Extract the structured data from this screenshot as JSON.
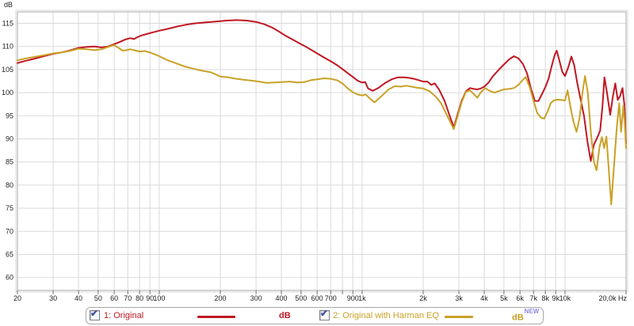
{
  "chart_data": {
    "type": "line",
    "title": "",
    "ylabel": "dB",
    "x_scale": "log",
    "x_range": [
      20,
      20000
    ],
    "y_range": [
      57.5,
      117.5
    ],
    "grid": true,
    "legend_position": "bottom",
    "y_ticks": [
      115,
      110,
      105,
      100,
      95,
      90,
      85,
      80,
      75,
      70,
      65,
      60
    ],
    "x_ticks": [
      {
        "f": 20,
        "label": "20"
      },
      {
        "f": 30,
        "label": "30"
      },
      {
        "f": 40,
        "label": "40"
      },
      {
        "f": 50,
        "label": "50"
      },
      {
        "f": 60,
        "label": "60"
      },
      {
        "f": 70,
        "label": "70"
      },
      {
        "f": 80,
        "label": "80"
      },
      {
        "f": 90,
        "label": "90"
      },
      {
        "f": 100,
        "label": "100"
      },
      {
        "f": 200,
        "label": "200"
      },
      {
        "f": 300,
        "label": "300"
      },
      {
        "f": 400,
        "label": "400"
      },
      {
        "f": 500,
        "label": "500"
      },
      {
        "f": 600,
        "label": "600"
      },
      {
        "f": 700,
        "label": "700"
      },
      {
        "f": 800,
        "label": ""
      },
      {
        "f": 900,
        "label": "900"
      },
      {
        "f": 1000,
        "label": "1k"
      },
      {
        "f": 2000,
        "label": "2k"
      },
      {
        "f": 3000,
        "label": "3k"
      },
      {
        "f": 4000,
        "label": "4k"
      },
      {
        "f": 5000,
        "label": "5k"
      },
      {
        "f": 6000,
        "label": "6k"
      },
      {
        "f": 7000,
        "label": "7k"
      },
      {
        "f": 8000,
        "label": "8k"
      },
      {
        "f": 9000,
        "label": "9k"
      },
      {
        "f": 10000,
        "label": "10k"
      },
      {
        "f": 20000,
        "label": "20,0k Hz"
      }
    ],
    "series": [
      {
        "name": "1: Original",
        "unit": "dB",
        "badge": "",
        "color": "#bf1722",
        "points": [
          [
            20,
            106.4
          ],
          [
            22,
            106.9
          ],
          [
            24,
            107.3
          ],
          [
            27,
            107.9
          ],
          [
            30,
            108.4
          ],
          [
            33,
            108.7
          ],
          [
            36,
            109.1
          ],
          [
            40,
            109.7
          ],
          [
            44,
            109.9
          ],
          [
            48,
            110.0
          ],
          [
            52,
            109.8
          ],
          [
            56,
            110.0
          ],
          [
            60,
            110.5
          ],
          [
            64,
            111.0
          ],
          [
            68,
            111.5
          ],
          [
            72,
            111.8
          ],
          [
            75,
            111.6
          ],
          [
            78,
            112.0
          ],
          [
            82,
            112.4
          ],
          [
            87,
            112.7
          ],
          [
            92,
            113.0
          ],
          [
            100,
            113.4
          ],
          [
            110,
            113.8
          ],
          [
            122,
            114.3
          ],
          [
            135,
            114.7
          ],
          [
            150,
            115.0
          ],
          [
            170,
            115.2
          ],
          [
            190,
            115.4
          ],
          [
            215,
            115.6
          ],
          [
            240,
            115.7
          ],
          [
            270,
            115.6
          ],
          [
            300,
            115.3
          ],
          [
            330,
            114.8
          ],
          [
            360,
            114.1
          ],
          [
            390,
            113.2
          ],
          [
            420,
            112.3
          ],
          [
            450,
            111.6
          ],
          [
            490,
            110.7
          ],
          [
            530,
            109.9
          ],
          [
            570,
            109.1
          ],
          [
            610,
            108.3
          ],
          [
            650,
            107.6
          ],
          [
            700,
            106.8
          ],
          [
            750,
            106.0
          ],
          [
            800,
            105.1
          ],
          [
            850,
            104.2
          ],
          [
            900,
            103.4
          ],
          [
            950,
            102.6
          ],
          [
            1000,
            102.2
          ],
          [
            1035,
            102.3
          ],
          [
            1070,
            100.9
          ],
          [
            1130,
            100.4
          ],
          [
            1200,
            101.0
          ],
          [
            1300,
            102.1
          ],
          [
            1400,
            102.9
          ],
          [
            1500,
            103.3
          ],
          [
            1600,
            103.3
          ],
          [
            1700,
            103.2
          ],
          [
            1800,
            103.0
          ],
          [
            1900,
            102.7
          ],
          [
            2000,
            102.4
          ],
          [
            2100,
            102.4
          ],
          [
            2190,
            101.7
          ],
          [
            2280,
            102.0
          ],
          [
            2400,
            100.6
          ],
          [
            2550,
            98.2
          ],
          [
            2700,
            95.0
          ],
          [
            2830,
            92.5
          ],
          [
            2950,
            95.2
          ],
          [
            3100,
            98.3
          ],
          [
            3250,
            100.3
          ],
          [
            3400,
            101.0
          ],
          [
            3550,
            100.8
          ],
          [
            3700,
            100.7
          ],
          [
            3850,
            100.9
          ],
          [
            4000,
            101.3
          ],
          [
            4200,
            102.2
          ],
          [
            4400,
            103.5
          ],
          [
            4700,
            104.9
          ],
          [
            5000,
            106.1
          ],
          [
            5300,
            107.2
          ],
          [
            5600,
            107.9
          ],
          [
            5900,
            107.4
          ],
          [
            6200,
            106.2
          ],
          [
            6500,
            104.2
          ],
          [
            6800,
            100.8
          ],
          [
            7100,
            98.2
          ],
          [
            7400,
            98.2
          ],
          [
            7700,
            99.7
          ],
          [
            8000,
            101.2
          ],
          [
            8300,
            103.0
          ],
          [
            8600,
            105.8
          ],
          [
            8900,
            108.2
          ],
          [
            9100,
            109.1
          ],
          [
            9350,
            107.2
          ],
          [
            9700,
            104.5
          ],
          [
            10000,
            103.6
          ],
          [
            10400,
            105.6
          ],
          [
            10750,
            107.8
          ],
          [
            11100,
            106.0
          ],
          [
            11500,
            102.0
          ],
          [
            11900,
            98.8
          ],
          [
            12400,
            95.0
          ],
          [
            12900,
            89.5
          ],
          [
            13400,
            85.2
          ],
          [
            13900,
            88.8
          ],
          [
            14400,
            90.2
          ],
          [
            14900,
            91.8
          ],
          [
            15300,
            97.0
          ],
          [
            15650,
            103.3
          ],
          [
            16100,
            100.0
          ],
          [
            16700,
            95.2
          ],
          [
            17200,
            99.0
          ],
          [
            17700,
            102.0
          ],
          [
            18200,
            98.4
          ],
          [
            18700,
            99.3
          ],
          [
            19200,
            101.0
          ],
          [
            19600,
            97.5
          ],
          [
            20000,
            89.0
          ]
        ]
      },
      {
        "name": "2: Original with Harman EQ",
        "unit": "dB",
        "badge": "NEW",
        "badge_color": "#8c8cdf",
        "color": "#c9a126",
        "points": [
          [
            20,
            107.0
          ],
          [
            22,
            107.4
          ],
          [
            24,
            107.7
          ],
          [
            27,
            108.1
          ],
          [
            30,
            108.5
          ],
          [
            33,
            108.7
          ],
          [
            36,
            109.0
          ],
          [
            40,
            109.5
          ],
          [
            44,
            109.4
          ],
          [
            48,
            109.2
          ],
          [
            52,
            109.4
          ],
          [
            56,
            109.9
          ],
          [
            60,
            110.3
          ],
          [
            63,
            109.7
          ],
          [
            66,
            109.1
          ],
          [
            69,
            109.2
          ],
          [
            72,
            109.4
          ],
          [
            75,
            109.2
          ],
          [
            80,
            108.9
          ],
          [
            85,
            109.0
          ],
          [
            90,
            108.7
          ],
          [
            95,
            108.3
          ],
          [
            100,
            107.9
          ],
          [
            110,
            107.0
          ],
          [
            120,
            106.4
          ],
          [
            135,
            105.6
          ],
          [
            150,
            105.1
          ],
          [
            165,
            104.7
          ],
          [
            180,
            104.4
          ],
          [
            200,
            103.5
          ],
          [
            220,
            103.3
          ],
          [
            240,
            103.0
          ],
          [
            260,
            102.8
          ],
          [
            285,
            102.6
          ],
          [
            310,
            102.4
          ],
          [
            340,
            102.1
          ],
          [
            370,
            102.2
          ],
          [
            400,
            102.3
          ],
          [
            440,
            102.4
          ],
          [
            480,
            102.2
          ],
          [
            520,
            102.3
          ],
          [
            560,
            102.7
          ],
          [
            600,
            102.9
          ],
          [
            650,
            103.1
          ],
          [
            700,
            103.0
          ],
          [
            750,
            102.7
          ],
          [
            800,
            102.0
          ],
          [
            850,
            100.9
          ],
          [
            900,
            100.1
          ],
          [
            950,
            99.6
          ],
          [
            1000,
            99.4
          ],
          [
            1040,
            99.6
          ],
          [
            1090,
            98.8
          ],
          [
            1150,
            97.9
          ],
          [
            1250,
            99.3
          ],
          [
            1350,
            100.7
          ],
          [
            1450,
            101.4
          ],
          [
            1550,
            101.3
          ],
          [
            1650,
            101.5
          ],
          [
            1750,
            101.3
          ],
          [
            1850,
            101.1
          ],
          [
            2000,
            100.9
          ],
          [
            2150,
            100.3
          ],
          [
            2300,
            99.2
          ],
          [
            2450,
            97.7
          ],
          [
            2600,
            95.4
          ],
          [
            2830,
            92.1
          ],
          [
            2950,
            94.8
          ],
          [
            3100,
            98.0
          ],
          [
            3250,
            100.2
          ],
          [
            3400,
            100.5
          ],
          [
            3550,
            99.7
          ],
          [
            3700,
            98.9
          ],
          [
            3850,
            100.1
          ],
          [
            4050,
            101.0
          ],
          [
            4250,
            100.4
          ],
          [
            4500,
            100.0
          ],
          [
            4750,
            100.4
          ],
          [
            5000,
            100.7
          ],
          [
            5300,
            100.8
          ],
          [
            5600,
            101.0
          ],
          [
            5900,
            101.7
          ],
          [
            6150,
            102.6
          ],
          [
            6400,
            103.4
          ],
          [
            6700,
            101.2
          ],
          [
            7000,
            98.2
          ],
          [
            7300,
            95.6
          ],
          [
            7600,
            94.6
          ],
          [
            7900,
            94.4
          ],
          [
            8200,
            95.9
          ],
          [
            8500,
            97.7
          ],
          [
            8800,
            98.3
          ],
          [
            9200,
            98.5
          ],
          [
            9600,
            98.4
          ],
          [
            10000,
            98.3
          ],
          [
            10300,
            100.5
          ],
          [
            10650,
            96.8
          ],
          [
            11000,
            93.8
          ],
          [
            11400,
            91.5
          ],
          [
            11800,
            94.5
          ],
          [
            12200,
            100.0
          ],
          [
            12550,
            103.6
          ],
          [
            12950,
            100.0
          ],
          [
            13400,
            91.5
          ],
          [
            13900,
            85.0
          ],
          [
            14300,
            83.2
          ],
          [
            14800,
            88.2
          ],
          [
            15200,
            90.4
          ],
          [
            15600,
            88.0
          ],
          [
            16000,
            90.5
          ],
          [
            16400,
            84.0
          ],
          [
            16900,
            75.8
          ],
          [
            17400,
            83.5
          ],
          [
            18000,
            92.5
          ],
          [
            18500,
            97.7
          ],
          [
            18900,
            91.5
          ],
          [
            19400,
            97.2
          ],
          [
            19700,
            93.5
          ],
          [
            20000,
            88.0
          ]
        ]
      }
    ]
  },
  "legend": {
    "items": [
      {
        "checked": true
      },
      {
        "checked": true
      }
    ]
  },
  "colors": {
    "grid": "#dadada",
    "frame": "#a8a8a8",
    "outer_frame": "#d8d8d8",
    "tick_text": "#222222",
    "tick_mark": "#707070"
  }
}
